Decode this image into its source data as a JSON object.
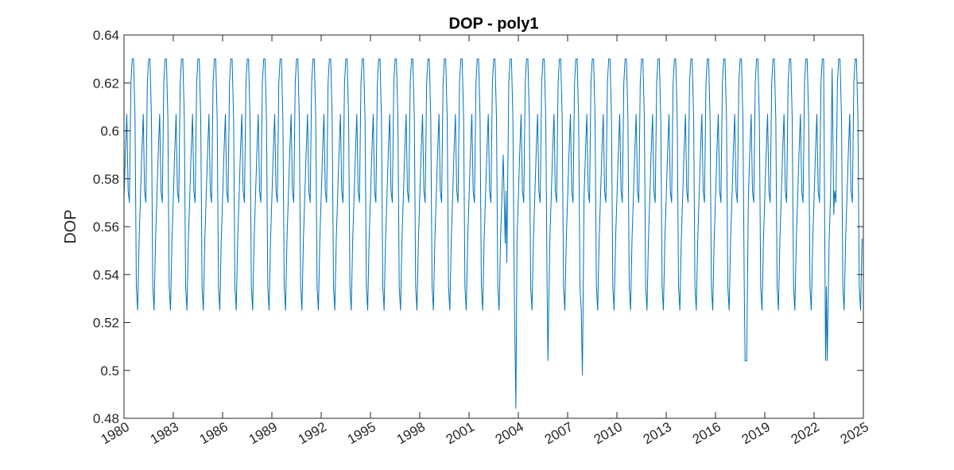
{
  "chart_data": {
    "type": "line",
    "title": "DOP - poly1",
    "xlabel": "",
    "ylabel": "DOP",
    "xlim": [
      1980,
      2025
    ],
    "ylim": [
      0.48,
      0.64
    ],
    "xticks": [
      1980,
      1983,
      1986,
      1989,
      1992,
      1995,
      1998,
      2001,
      2004,
      2007,
      2010,
      2013,
      2016,
      2019,
      2022,
      2025
    ],
    "xtick_labels": [
      "1980",
      "1983",
      "1986",
      "1989",
      "1992",
      "1995",
      "1998",
      "2001",
      "2004",
      "2007",
      "2010",
      "2013",
      "2016",
      "2019",
      "2022",
      "2025"
    ],
    "yticks": [
      0.48,
      0.5,
      0.52,
      0.54,
      0.56,
      0.58,
      0.6,
      0.62,
      0.64
    ],
    "ytick_labels": [
      "0.48",
      "0.5",
      "0.52",
      "0.54",
      "0.56",
      "0.58",
      "0.6",
      "0.62",
      "0.64"
    ],
    "grid": false,
    "line_color": "#0072BD",
    "series": [
      {
        "values_note": "annual pattern repeated",
        "annual_pattern_x_offsets": [
          0.0,
          0.08,
          0.17,
          0.25,
          0.33,
          0.42,
          0.5,
          0.58,
          0.67,
          0.75,
          0.83,
          0.92
        ],
        "annual_pattern_y": [
          0.572,
          0.59,
          0.607,
          0.575,
          0.57,
          0.62,
          0.63,
          0.63,
          0.605,
          0.535,
          0.525,
          0.555
        ],
        "x_start": 1980,
        "x_end": 2025,
        "anomalies": [
          {
            "x": 2003.2,
            "y": 0.553
          },
          {
            "x": 2003.3,
            "y": 0.545
          },
          {
            "x": 2003.85,
            "y": 0.484
          },
          {
            "x": 2005.8,
            "y": 0.504
          },
          {
            "x": 2007.9,
            "y": 0.498
          },
          {
            "x": 2017.8,
            "y": 0.504
          },
          {
            "x": 2017.9,
            "y": 0.504
          },
          {
            "x": 2022.7,
            "y": 0.504
          },
          {
            "x": 2022.8,
            "y": 0.504
          },
          {
            "x": 2023.1,
            "y": 0.626
          },
          {
            "x": 2023.2,
            "y": 0.565
          }
        ]
      }
    ]
  }
}
